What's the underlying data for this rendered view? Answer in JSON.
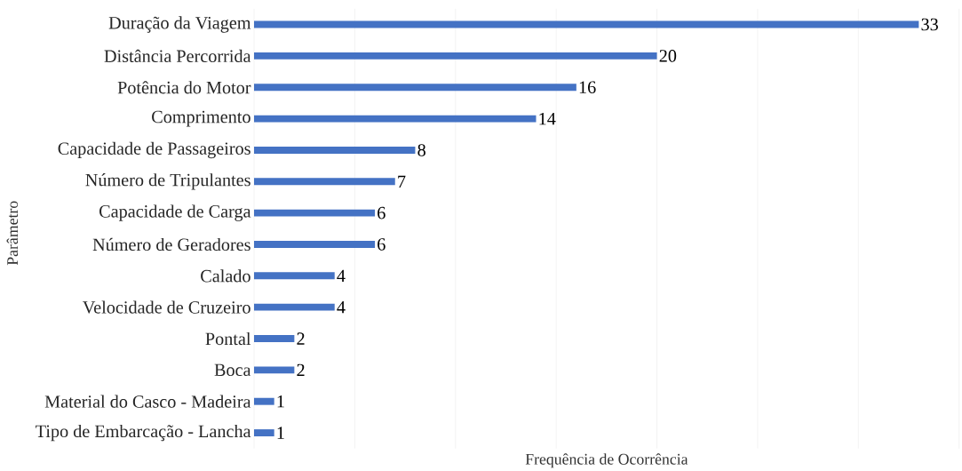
{
  "chart_data": {
    "type": "bar",
    "orientation": "horizontal",
    "xlabel": "Frequência de Ocorrência",
    "ylabel": "Parâmetro",
    "categories": [
      "Duração da Viagem",
      "Distância Percorrida",
      "Potência do Motor",
      "Comprimento",
      "Capacidade de Passageiros",
      "Número de Tripulantes",
      "Capacidade de Carga",
      "Número de Geradores",
      "Calado",
      "Velocidade de Cruzeiro",
      "Pontal",
      "Boca",
      "Material do Casco - Madeira",
      "Tipo de Embarcação - Lancha"
    ],
    "values": [
      33,
      20,
      16,
      14,
      8,
      7,
      6,
      6,
      4,
      4,
      2,
      2,
      1,
      1
    ],
    "color": "#4472c4",
    "xlim": [
      0,
      35
    ],
    "xticks": [
      {
        "value": 0,
        "label": null
      },
      {
        "value": 5,
        "label": null
      },
      {
        "value": 10,
        "label": null
      },
      {
        "value": 15,
        "label": null
      },
      {
        "value": 20,
        "label": null
      },
      {
        "value": 25,
        "label": null
      },
      {
        "value": 30,
        "label": null
      },
      {
        "value": 35,
        "label": null
      }
    ],
    "tick_labels": "y",
    "grid": "x",
    "data_labels": true
  }
}
